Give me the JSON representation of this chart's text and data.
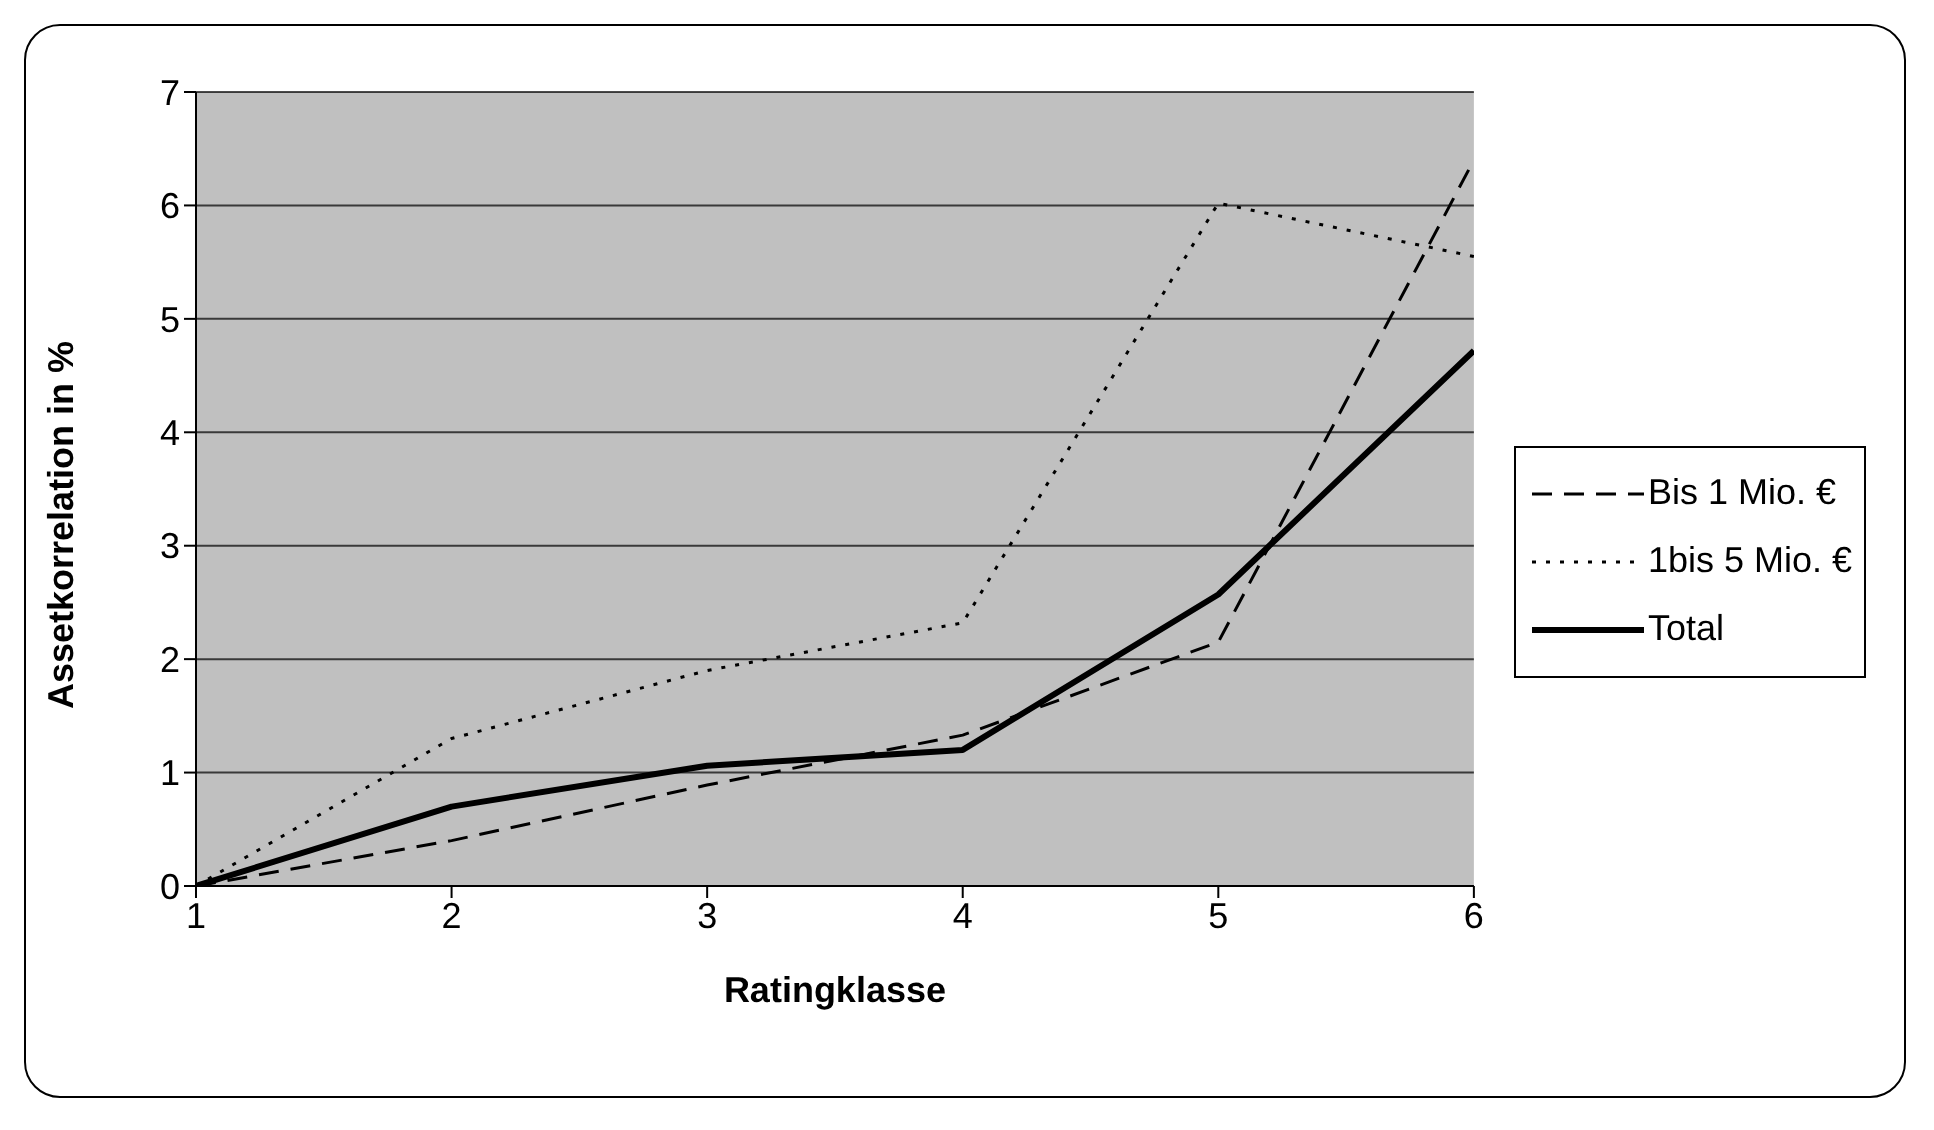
{
  "chart_data": {
    "type": "line",
    "xlabel": "Ratingklasse",
    "ylabel": "Assetkorrelation in %",
    "x": [
      1,
      2,
      3,
      4,
      5,
      6
    ],
    "series": [
      {
        "name": "Bis 1 Mio. €",
        "color": "#000000",
        "line_style": "dashed",
        "values": [
          0,
          0.4,
          0.89,
          1.33,
          2.15,
          6.4
        ]
      },
      {
        "name": "1bis 5 Mio. €",
        "color": "#000000",
        "line_style": "dotted",
        "values": [
          0,
          1.3,
          1.9,
          2.32,
          6.02,
          5.55
        ]
      },
      {
        "name": "Total",
        "color": "#000000",
        "line_style": "solid",
        "values": [
          0,
          0.7,
          1.06,
          1.2,
          2.57,
          4.72
        ]
      }
    ],
    "xlim": [
      1,
      6
    ],
    "xticks": [
      1,
      2,
      3,
      4,
      5,
      6
    ],
    "ylim": [
      0,
      7
    ],
    "yticks": [
      0,
      1,
      2,
      3,
      4,
      5,
      6,
      7
    ],
    "grid": "y",
    "legend": "right",
    "marker": "none"
  }
}
